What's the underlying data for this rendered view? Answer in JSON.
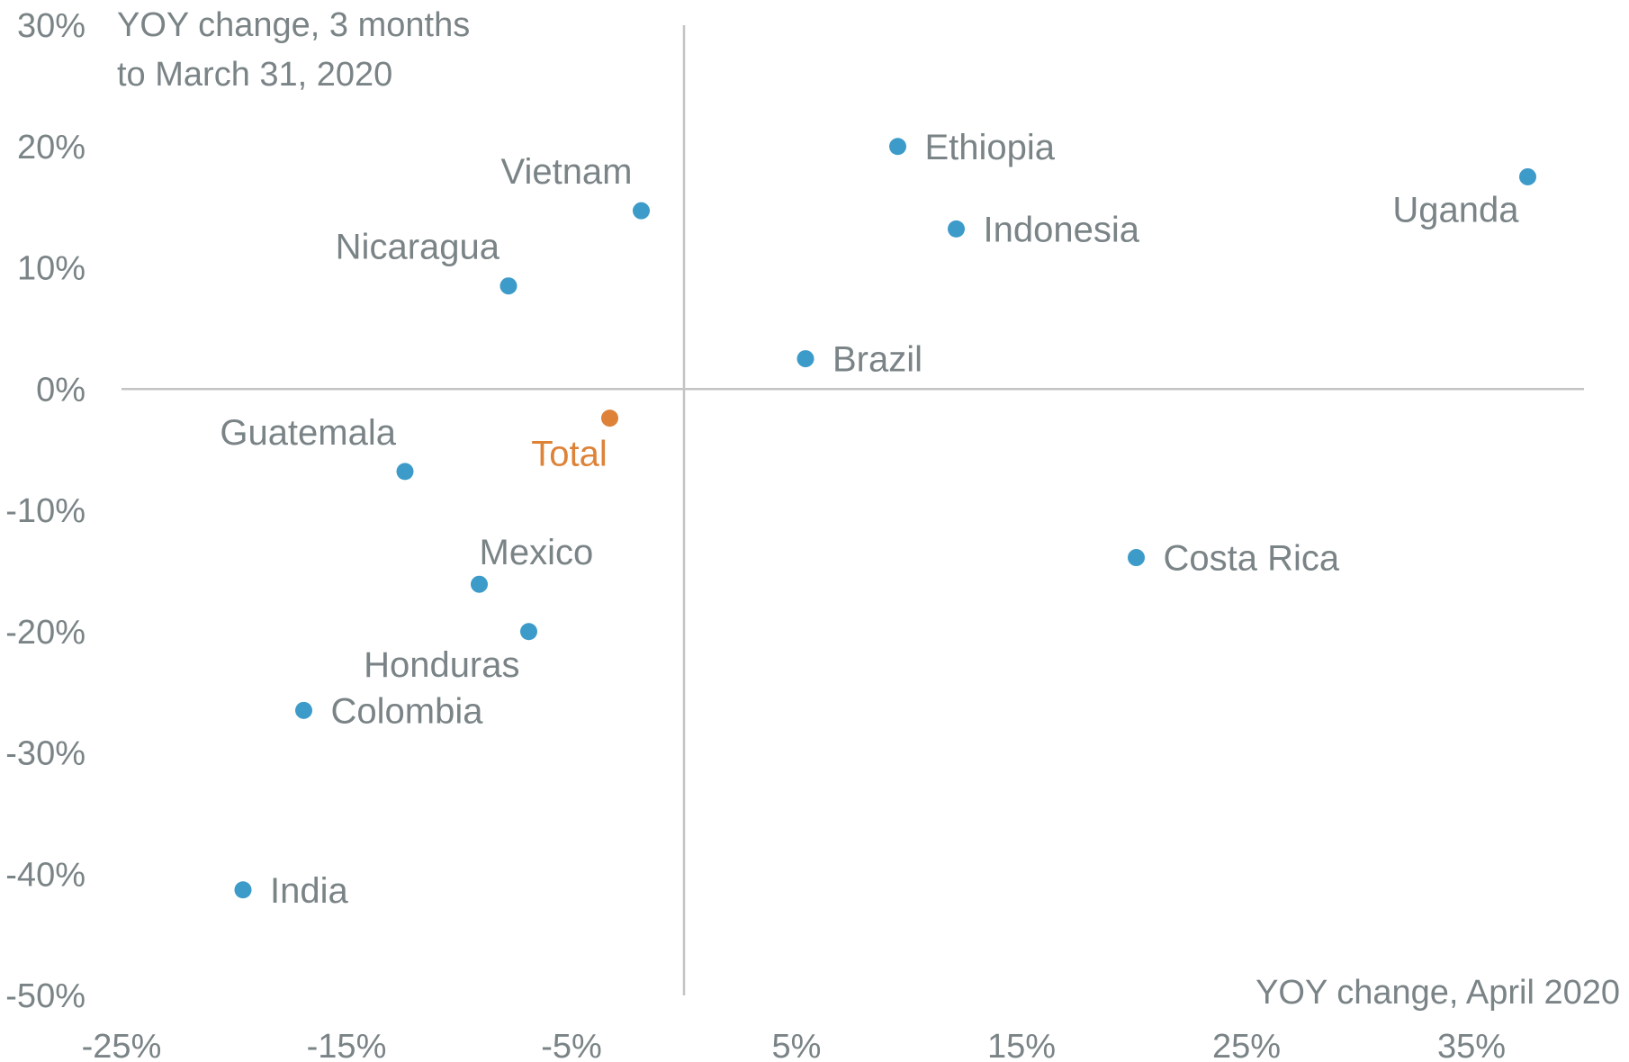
{
  "chart_data": {
    "type": "scatter",
    "xlabel": "YOY change, April 2020",
    "ylabel_lines": [
      "YOY change, 3 months",
      "to March 31, 2020"
    ],
    "xlim": [
      -25,
      40
    ],
    "ylim": [
      -50,
      30
    ],
    "x_ticks": [
      -25,
      -15,
      -5,
      5,
      15,
      25,
      35
    ],
    "x_tick_labels": [
      "-25%",
      "-15%",
      "-5%",
      "5%",
      "15%",
      "25%",
      "35%"
    ],
    "y_ticks": [
      30,
      20,
      10,
      0,
      -10,
      -20,
      -30,
      -40,
      -50
    ],
    "y_tick_labels": [
      "30%",
      "20%",
      "10%",
      "0%",
      "-10%",
      "-20%",
      "-30%",
      "-40%",
      "-50%"
    ],
    "grid": false,
    "colors": {
      "point": "#3d9bc9",
      "highlight": "#dd8237",
      "label": "#7a8386",
      "axis": "#c4c4c4"
    },
    "points": [
      {
        "label": "Ethiopia",
        "x": 9.5,
        "y": 20.0,
        "label_pos": "right"
      },
      {
        "label": "Uganda",
        "x": 37.5,
        "y": 17.5,
        "label_pos": "below-left"
      },
      {
        "label": "Vietnam",
        "x": -1.9,
        "y": 14.7,
        "label_pos": "above-left"
      },
      {
        "label": "Indonesia",
        "x": 12.1,
        "y": 13.2,
        "label_pos": "right"
      },
      {
        "label": "Nicaragua",
        "x": -7.8,
        "y": 8.5,
        "label_pos": "above-left"
      },
      {
        "label": "Brazil",
        "x": 5.4,
        "y": 2.5,
        "label_pos": "right"
      },
      {
        "label": "Total",
        "x": -3.3,
        "y": -2.4,
        "label_pos": "below",
        "highlight": true
      },
      {
        "label": "Guatemala",
        "x": -12.4,
        "y": -6.8,
        "label_pos": "above-left"
      },
      {
        "label": "Costa Rica",
        "x": 20.1,
        "y": -13.9,
        "label_pos": "right"
      },
      {
        "label": "Mexico",
        "x": -9.1,
        "y": -16.1,
        "label_pos": "above-right"
      },
      {
        "label": "Honduras",
        "x": -6.9,
        "y": -20.0,
        "label_pos": "below-left"
      },
      {
        "label": "Colombia",
        "x": -16.9,
        "y": -26.5,
        "label_pos": "right"
      },
      {
        "label": "India",
        "x": -19.6,
        "y": -41.3,
        "label_pos": "right"
      }
    ]
  }
}
